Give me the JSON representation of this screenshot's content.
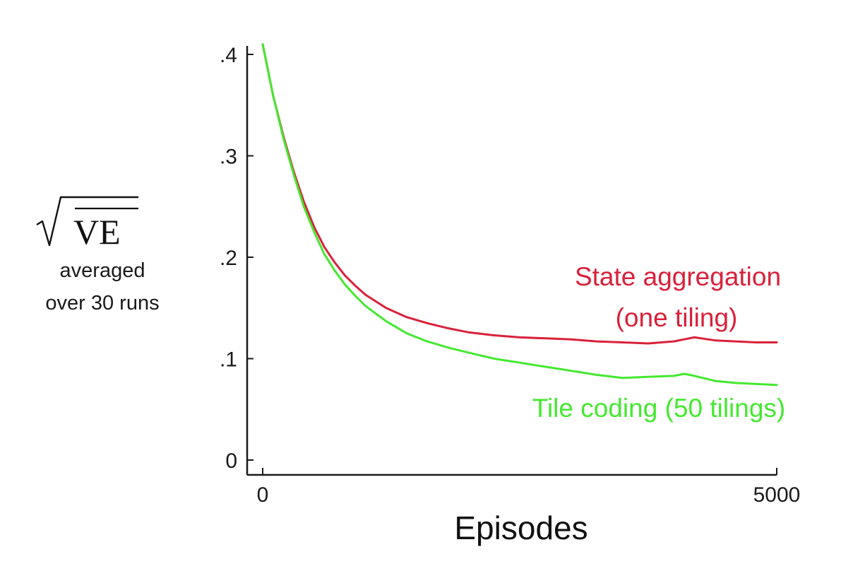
{
  "chart_data": {
    "type": "line",
    "title": "",
    "xlabel": "Episodes",
    "ylabel": {
      "symbol": "VE",
      "line1": "averaged",
      "line2": "over 30 runs"
    },
    "xlim": [
      0,
      5000
    ],
    "ylim": [
      0,
      0.4
    ],
    "x_ticks": [
      {
        "value": 0,
        "label": "0"
      },
      {
        "value": 5000,
        "label": "5000"
      }
    ],
    "y_ticks": [
      {
        "value": 0,
        "label": "0"
      },
      {
        "value": 0.1,
        "label": ".1"
      },
      {
        "value": 0.2,
        "label": ".2"
      },
      {
        "value": 0.3,
        "label": ".3"
      },
      {
        "value": 0.4,
        "label": ".4"
      }
    ],
    "grid": false,
    "legend": "inline-annotations",
    "series": [
      {
        "name": "State aggregation (one tiling)",
        "label_lines": [
          "State aggregation",
          "(one tiling)"
        ],
        "color": "#d9213a",
        "x": [
          0,
          100,
          200,
          300,
          400,
          500,
          600,
          700,
          800,
          900,
          1000,
          1200,
          1400,
          1600,
          1800,
          2000,
          2250,
          2500,
          2750,
          3000,
          3250,
          3500,
          3750,
          4000,
          4100,
          4200,
          4400,
          4600,
          4800,
          5000
        ],
        "y": [
          0.41,
          0.36,
          0.32,
          0.285,
          0.255,
          0.23,
          0.21,
          0.195,
          0.182,
          0.172,
          0.163,
          0.15,
          0.141,
          0.135,
          0.13,
          0.126,
          0.123,
          0.121,
          0.12,
          0.119,
          0.117,
          0.116,
          0.115,
          0.117,
          0.119,
          0.121,
          0.118,
          0.117,
          0.116,
          0.116
        ]
      },
      {
        "name": "Tile coding (50 tilings)",
        "label_lines": [
          "Tile coding (50 tilings)"
        ],
        "color": "#44e830",
        "x": [
          0,
          100,
          200,
          300,
          400,
          500,
          600,
          700,
          800,
          900,
          1000,
          1200,
          1400,
          1600,
          1800,
          2000,
          2250,
          2500,
          2750,
          3000,
          3250,
          3500,
          3750,
          4000,
          4100,
          4200,
          4400,
          4600,
          4800,
          5000
        ],
        "y": [
          0.41,
          0.36,
          0.318,
          0.282,
          0.25,
          0.225,
          0.203,
          0.187,
          0.173,
          0.162,
          0.152,
          0.137,
          0.125,
          0.117,
          0.111,
          0.106,
          0.1,
          0.096,
          0.092,
          0.088,
          0.084,
          0.081,
          0.082,
          0.083,
          0.085,
          0.083,
          0.078,
          0.076,
          0.075,
          0.074
        ]
      }
    ]
  }
}
